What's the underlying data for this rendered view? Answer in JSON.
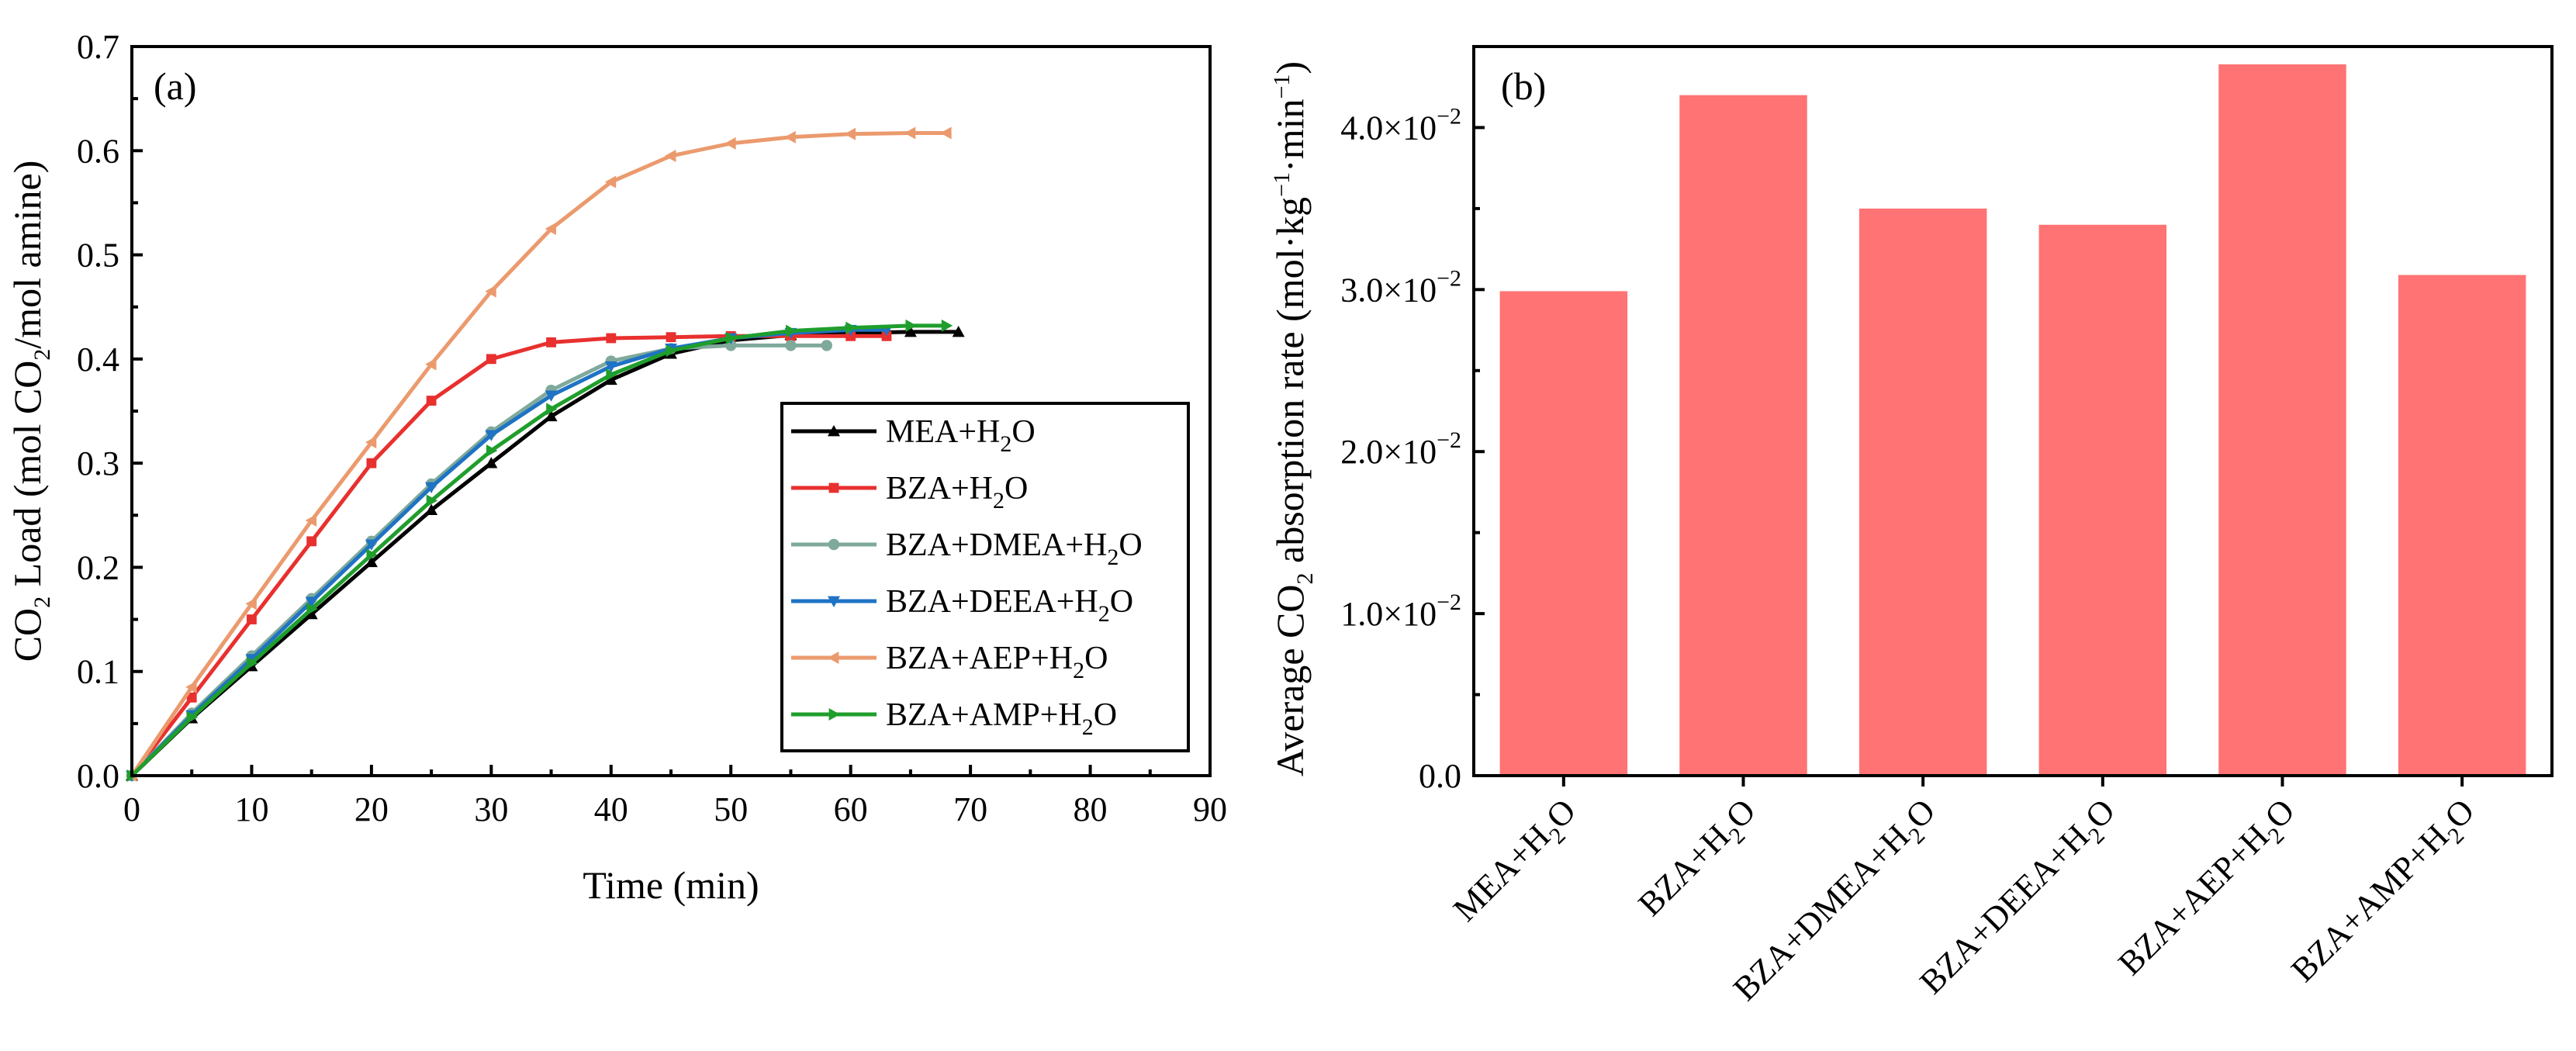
{
  "chart_data": [
    {
      "type": "line",
      "panel_label": "(a)",
      "title": "",
      "xlabel": "Time (min)",
      "ylabel": {
        "p1": "CO",
        "s1": "2",
        "p2": " Load (mol CO",
        "s2": "2",
        "p3": "/mol amine)"
      },
      "xlim": [
        0,
        90
      ],
      "ylim": [
        0,
        0.7
      ],
      "xticks": [
        "0",
        "10",
        "20",
        "30",
        "40",
        "50",
        "60",
        "70",
        "80",
        "90"
      ],
      "yticks": [
        "0.0",
        "0.1",
        "0.2",
        "0.3",
        "0.4",
        "0.5",
        "0.6",
        "0.7"
      ],
      "legend_position": "lower-right",
      "series": [
        {
          "key": "mea",
          "name": "MEA+H2O",
          "label": {
            "p1": "MEA+H",
            "s1": "2",
            "p2": "O"
          },
          "color": "#000000",
          "marker": "triangle-up",
          "x": [
            0,
            5,
            10,
            15,
            20,
            25,
            30,
            35,
            40,
            45,
            50,
            55,
            60,
            65,
            69
          ],
          "y": [
            0.0,
            0.055,
            0.105,
            0.155,
            0.205,
            0.255,
            0.3,
            0.345,
            0.38,
            0.405,
            0.418,
            0.423,
            0.425,
            0.426,
            0.426
          ]
        },
        {
          "key": "bza",
          "name": "BZA+H2O",
          "label": {
            "p1": "BZA+H",
            "s1": "2",
            "p2": "O"
          },
          "color": "#e8302f",
          "marker": "square",
          "x": [
            0,
            5,
            10,
            15,
            20,
            25,
            30,
            35,
            40,
            45,
            50,
            55,
            60,
            63
          ],
          "y": [
            0.0,
            0.075,
            0.15,
            0.225,
            0.3,
            0.36,
            0.4,
            0.416,
            0.42,
            0.421,
            0.422,
            0.422,
            0.422,
            0.422
          ]
        },
        {
          "key": "dmea",
          "name": "BZA+DMEA+H2O",
          "label": {
            "p1": "BZA+DMEA+H",
            "s1": "2",
            "p2": "O"
          },
          "color": "#7fa99b",
          "marker": "circle",
          "x": [
            0,
            5,
            10,
            15,
            20,
            25,
            30,
            35,
            40,
            45,
            50,
            55,
            58
          ],
          "y": [
            0.0,
            0.06,
            0.115,
            0.17,
            0.225,
            0.28,
            0.33,
            0.37,
            0.398,
            0.41,
            0.413,
            0.413,
            0.413
          ]
        },
        {
          "key": "deea",
          "name": "BZA+DEEA+H2O",
          "label": {
            "p1": "BZA+DEEA+H",
            "s1": "2",
            "p2": "O"
          },
          "color": "#1f73c4",
          "marker": "triangle-down",
          "x": [
            0,
            5,
            10,
            15,
            20,
            25,
            30,
            35,
            40,
            45,
            50,
            55,
            60,
            63
          ],
          "y": [
            0.0,
            0.058,
            0.112,
            0.167,
            0.222,
            0.277,
            0.327,
            0.365,
            0.393,
            0.41,
            0.42,
            0.425,
            0.428,
            0.428
          ]
        },
        {
          "key": "aep",
          "name": "BZA+AEP+H2O",
          "label": {
            "p1": "BZA+AEP+H",
            "s1": "2",
            "p2": "O"
          },
          "color": "#eb9a6e",
          "marker": "triangle-left",
          "x": [
            0,
            5,
            10,
            15,
            20,
            25,
            30,
            35,
            40,
            45,
            50,
            55,
            60,
            65,
            68
          ],
          "y": [
            0.0,
            0.085,
            0.165,
            0.245,
            0.32,
            0.395,
            0.465,
            0.525,
            0.57,
            0.595,
            0.607,
            0.613,
            0.616,
            0.617,
            0.617
          ]
        },
        {
          "key": "amp",
          "name": "BZA+AMP+H2O",
          "label": {
            "p1": "BZA+AMP+H",
            "s1": "2",
            "p2": "O"
          },
          "color": "#1f9e2c",
          "marker": "triangle-right",
          "x": [
            0,
            5,
            10,
            15,
            20,
            25,
            30,
            35,
            40,
            45,
            50,
            55,
            60,
            65,
            68
          ],
          "y": [
            0.0,
            0.056,
            0.108,
            0.16,
            0.212,
            0.264,
            0.312,
            0.352,
            0.385,
            0.408,
            0.42,
            0.427,
            0.43,
            0.432,
            0.432
          ]
        }
      ]
    },
    {
      "type": "bar",
      "panel_label": "(b)",
      "title": "",
      "xlabel": "",
      "ylabel": {
        "p1": "Average CO",
        "s1": "2",
        "p2": " absorption rate (mol·kg",
        "e1": "−1",
        "p3": "·min",
        "e2": "−1",
        "p4": ")"
      },
      "ylim": [
        0,
        0.045
      ],
      "yticks": [
        {
          "value": 0.0,
          "mant": "0.0",
          "exp": ""
        },
        {
          "value": 0.01,
          "mant": "1.0×10",
          "exp": "−2"
        },
        {
          "value": 0.02,
          "mant": "2.0×10",
          "exp": "−2"
        },
        {
          "value": 0.03,
          "mant": "3.0×10",
          "exp": "−2"
        },
        {
          "value": 0.04,
          "mant": "4.0×10",
          "exp": "−2"
        }
      ],
      "bar_color": "#ff7374",
      "categories": [
        {
          "p1": "MEA+H",
          "s1": "2",
          "p2": "O"
        },
        {
          "p1": "BZA+H",
          "s1": "2",
          "p2": "O"
        },
        {
          "p1": "BZA+DMEA+H",
          "s1": "2",
          "p2": "O"
        },
        {
          "p1": "BZA+DEEA+H",
          "s1": "2",
          "p2": "O"
        },
        {
          "p1": "BZA+AEP+H",
          "s1": "2",
          "p2": "O"
        },
        {
          "p1": "BZA+AMP+H",
          "s1": "2",
          "p2": "O"
        }
      ],
      "values": [
        0.0299,
        0.042,
        0.035,
        0.034,
        0.0439,
        0.0309
      ]
    }
  ]
}
